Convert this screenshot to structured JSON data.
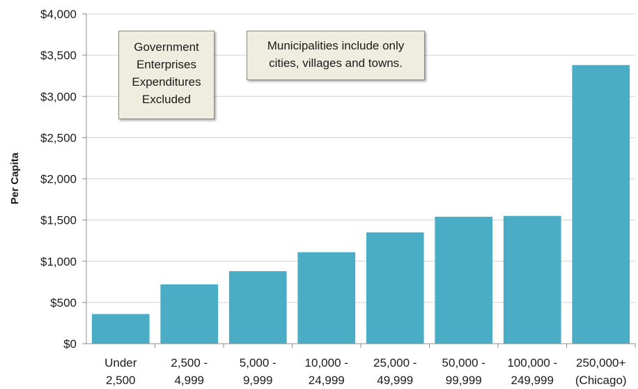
{
  "chart_data": {
    "type": "bar",
    "title": "",
    "xlabel": "",
    "ylabel": "Per Capita",
    "ylim": [
      0,
      4000
    ],
    "yticks": [
      0,
      500,
      1000,
      1500,
      2000,
      2500,
      3000,
      3500,
      4000
    ],
    "ytick_labels": [
      "$0",
      "$500",
      "$1,000",
      "$1,500",
      "$2,000",
      "$2,500",
      "$3,000",
      "$3,500",
      "$4,000"
    ],
    "categories": [
      [
        "Under",
        "2,500"
      ],
      [
        "2,500 -",
        "4,999"
      ],
      [
        "5,000 -",
        "9,999"
      ],
      [
        "10,000 -",
        "24,999"
      ],
      [
        "25,000 -",
        "49,999"
      ],
      [
        "50,000 -",
        "99,999"
      ],
      [
        "100,000 -",
        "249,999"
      ],
      [
        "250,000+",
        "(Chicago)"
      ]
    ],
    "values": [
      360,
      720,
      880,
      1110,
      1350,
      1540,
      1550,
      3380
    ],
    "grid": true,
    "bar_color": "#4bacc6",
    "grid_color": "#d0d0d0",
    "annotations": [
      {
        "id": "gov",
        "lines": [
          "Government",
          "Enterprises",
          "Expenditures",
          "Excluded"
        ]
      },
      {
        "id": "muni",
        "lines": [
          "Municipalities include only",
          "cities, villages and towns."
        ]
      }
    ]
  }
}
